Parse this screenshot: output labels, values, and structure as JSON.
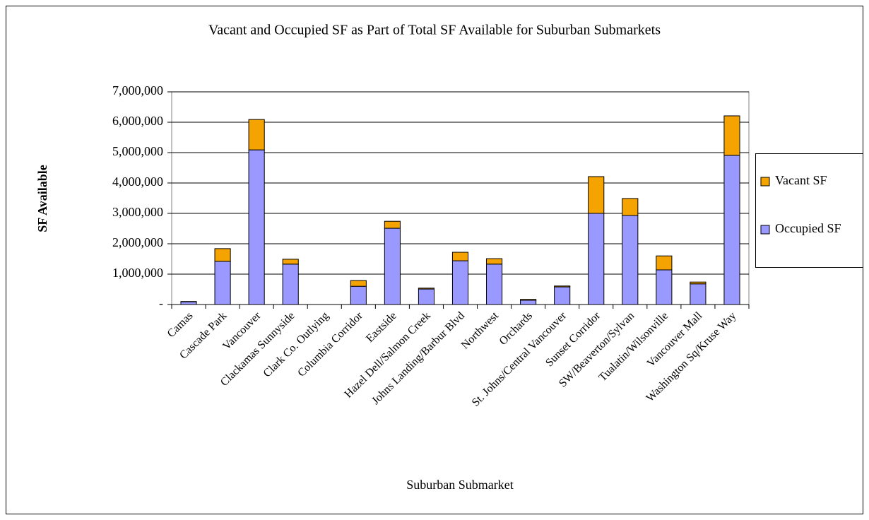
{
  "chart_data": {
    "type": "stacked_bar",
    "title": "Vacant and Occupied SF as Part of Total SF Available for Suburban Submarkets",
    "x_label": "Suburban Submarket",
    "y_label": "SF Available",
    "categories": [
      "Camas",
      "Cascade Park",
      "Vancouver",
      "Clackamas Sunnyside",
      "Clark Co. Outlying",
      "Columbia Corridor",
      "Eastside",
      "Hazel Dell/Salmon Creek",
      "Johns Landing/Barbur Blvd",
      "Northwest",
      "Orchards",
      "St. Johns/Central Vancouver",
      "Sunset Corridor",
      "SW/Beaverton/Sylvan",
      "Tualatin/Wilsonville",
      "Vancouver Mall",
      "Washington Sq/Kruse Way"
    ],
    "series": [
      {
        "name": "Occupied SF",
        "color": "#9999ff",
        "values": [
          90000,
          1420000,
          5090000,
          1330000,
          0,
          600000,
          2510000,
          510000,
          1440000,
          1330000,
          140000,
          580000,
          3000000,
          2930000,
          1140000,
          680000,
          4910000
        ]
      },
      {
        "name": "Vacant SF",
        "color": "#f5a300",
        "values": [
          10000,
          420000,
          1000000,
          160000,
          0,
          190000,
          230000,
          30000,
          280000,
          180000,
          30000,
          30000,
          1210000,
          560000,
          460000,
          60000,
          1300000
        ]
      }
    ],
    "ylim": [
      0,
      7000000
    ],
    "yticks": [
      {
        "value": 0,
        "label": "-"
      },
      {
        "value": 1000000,
        "label": "1,000,000"
      },
      {
        "value": 2000000,
        "label": "2,000,000"
      },
      {
        "value": 3000000,
        "label": "3,000,000"
      },
      {
        "value": 4000000,
        "label": "4,000,000"
      },
      {
        "value": 5000000,
        "label": "5,000,000"
      },
      {
        "value": 6000000,
        "label": "6,000,000"
      },
      {
        "value": 7000000,
        "label": "7,000,000"
      }
    ],
    "grid": true,
    "legend": "right"
  }
}
